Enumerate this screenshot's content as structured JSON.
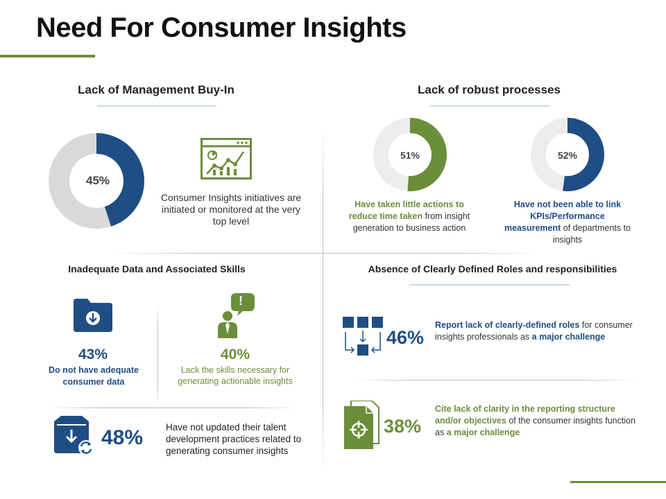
{
  "title": "Need For Consumer Insights",
  "colors": {
    "navy": "#1f4e84",
    "green": "#6b8e3a",
    "grey": "#d9d9d9",
    "light": "#ededed"
  },
  "mgmt": {
    "heading": "Lack of Management Buy-In",
    "pct_label": "45%",
    "pct_value": 45,
    "desc": "Consumer Insights initiatives are initiated or monitored at the very top level"
  },
  "robust": {
    "heading": "Lack of robust processes",
    "left": {
      "pct_label": "51%",
      "pct_value": 51,
      "emph": "Have taken little actions to reduce time taken",
      "rest": " from insight generation to business action"
    },
    "right": {
      "pct_label": "52%",
      "pct_value": 52,
      "emph": "Have not been able to link KPIs/Performance measurement",
      "rest": " of departments to insights"
    }
  },
  "data_skills": {
    "heading": "Inadequate Data and Associated Skills",
    "item1": {
      "pct": "43%",
      "text": "Do not have adequate consumer data"
    },
    "item2": {
      "pct": "40%",
      "text": "Lack the skills necessary for generating actionable insights"
    },
    "item3": {
      "pct": "48%",
      "text": "Have not updated their talent development practices related to generating consumer insights"
    },
    "alert_glyph": "!"
  },
  "roles": {
    "heading": "Absence of Clearly Defined Roles and responsibilities",
    "item1": {
      "pct": "46%",
      "emph1": "Report lack of clearly-defined roles",
      "mid": " for consumer insights professionals as ",
      "emph2": "a major challenge"
    },
    "item2": {
      "pct": "38%",
      "emph1": "Cite lack of clarity in the reporting structure and/or objectives",
      "mid": " of the consumer insights function as ",
      "emph2": "a major challenge"
    }
  }
}
